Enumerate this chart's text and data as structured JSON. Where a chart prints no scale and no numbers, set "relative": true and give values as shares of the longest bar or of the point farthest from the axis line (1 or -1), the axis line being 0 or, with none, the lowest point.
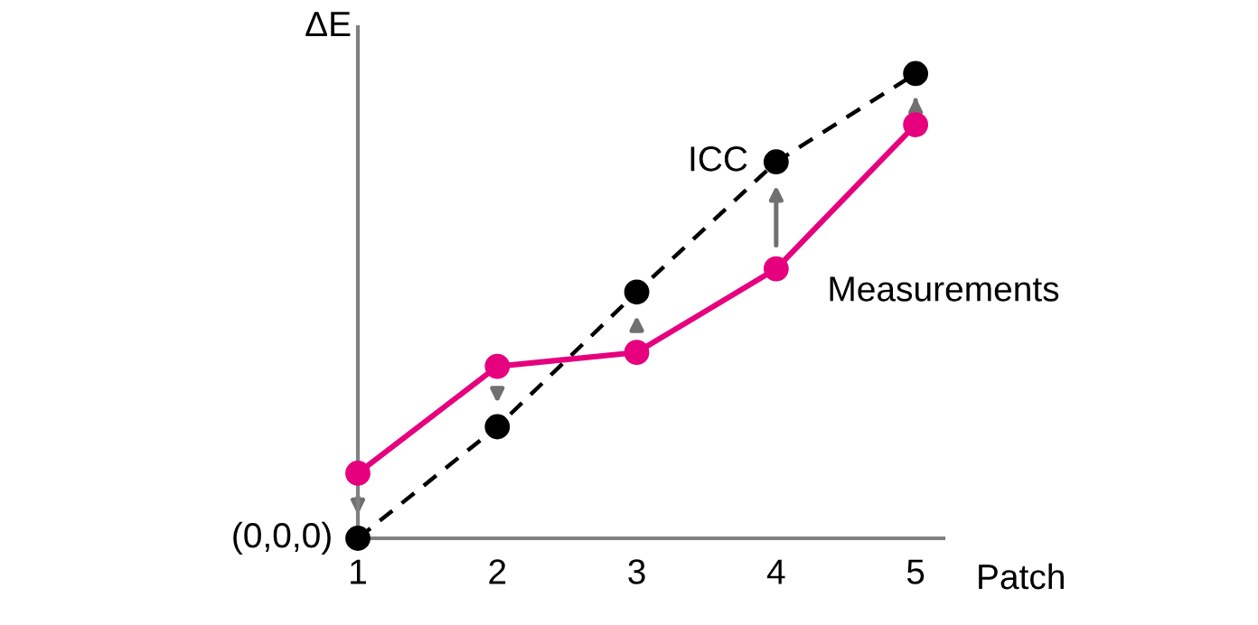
{
  "chart_data": {
    "type": "line",
    "relative": true,
    "xlabel": "Patch",
    "ylabel": "ΔE",
    "categories": [
      "1",
      "2",
      "3",
      "4",
      "5"
    ],
    "series": [
      {
        "name": "ICC",
        "color": "#000000",
        "line_style": "dashed",
        "values": [
          0,
          0.24,
          0.53,
          0.81,
          1.0
        ]
      },
      {
        "name": "Measurements",
        "color": "#e6007e",
        "line_style": "solid",
        "values": [
          0.14,
          0.37,
          0.4,
          0.58,
          0.89
        ]
      }
    ],
    "marker": "circle",
    "legend": false,
    "grid": false,
    "annotations": [
      "(0,0,0)"
    ]
  }
}
